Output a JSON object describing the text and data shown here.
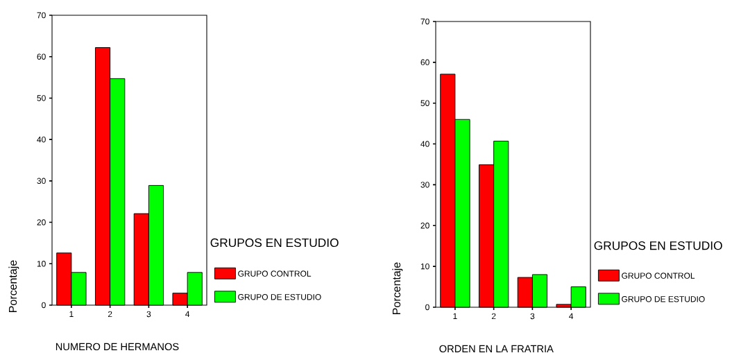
{
  "chart_data": [
    {
      "type": "bar",
      "xlabel": "NUMERO DE HERMANOS",
      "ylabel": "Porcentaje",
      "legend_title": "GRUPOS EN ESTUDIO",
      "categories": [
        "1",
        "2",
        "3",
        "4"
      ],
      "series": [
        {
          "name": "GRUPO CONTROL",
          "color": "#ff0000",
          "values": [
            12.6,
            62.2,
            22.1,
            2.9
          ]
        },
        {
          "name": "GRUPO DE ESTUDIO",
          "color": "#00ff00",
          "values": [
            7.9,
            54.7,
            28.9,
            7.9
          ]
        }
      ],
      "ylim": [
        0,
        70
      ],
      "yticks": [
        0,
        10,
        20,
        30,
        40,
        50,
        60,
        70
      ],
      "legend": "right"
    },
    {
      "type": "bar",
      "xlabel": "ORDEN EN LA FRATRIA",
      "ylabel": "Porcentaje",
      "legend_title": "GRUPOS EN ESTUDIO",
      "categories": [
        "1",
        "2",
        "3",
        "4"
      ],
      "series": [
        {
          "name": "GRUPO CONTROL",
          "color": "#ff0000",
          "values": [
            57.1,
            34.9,
            7.3,
            0.7
          ]
        },
        {
          "name": "GRUPO DE ESTUDIO",
          "color": "#00ff00",
          "values": [
            46.0,
            40.7,
            8.0,
            5.0
          ]
        }
      ],
      "ylim": [
        0,
        70
      ],
      "yticks": [
        0,
        10,
        20,
        30,
        40,
        50,
        60,
        70
      ],
      "legend": "right"
    }
  ]
}
